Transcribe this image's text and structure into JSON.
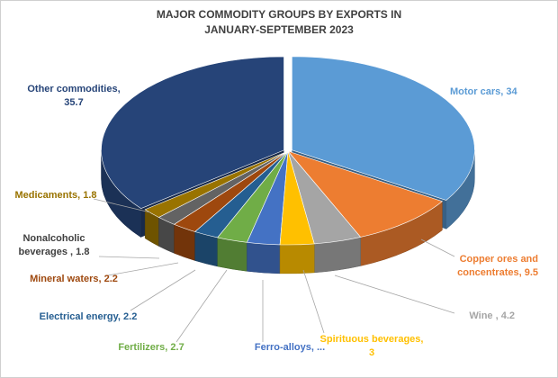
{
  "chart_data": {
    "type": "pie",
    "title_lines": [
      "MAJOR COMMODITY GROUPS BY EXPORTS IN",
      "JANUARY-SEPTEMBER 2023"
    ],
    "style": "3d-exploded-pie",
    "start_angle_deg": 90,
    "direction": "clockwise",
    "slices": [
      {
        "name": "Motor cars",
        "value": 34,
        "color": "#5B9BD5",
        "label_lines": [
          "Motor cars, 34"
        ],
        "label_color": "#5B9BD5"
      },
      {
        "name": "Copper ores and concentrates",
        "value": 9.5,
        "color": "#ED7D31",
        "label_lines": [
          "Copper ores and",
          "concentrates, 9.5"
        ],
        "label_color": "#ED7D31"
      },
      {
        "name": "Wine",
        "value": 4.2,
        "color": "#A5A5A5",
        "label_lines": [
          "Wine , 4.2"
        ],
        "label_color": "#A5A5A5"
      },
      {
        "name": "Spirituous beverages",
        "value": 3,
        "color": "#FFC000",
        "label_lines": [
          "Spirituous beverages,",
          "3"
        ],
        "label_color": "#FFC000"
      },
      {
        "name": "Ferro-alloys",
        "value": 2.9,
        "color": "#4472C4",
        "label_lines": [
          "Ferro-alloys, ..."
        ],
        "label_color": "#4472C4"
      },
      {
        "name": "Fertilizers",
        "value": 2.7,
        "color": "#70AD47",
        "label_lines": [
          "Fertilizers, 2.7"
        ],
        "label_color": "#70AD47"
      },
      {
        "name": "Electrical energy",
        "value": 2.2,
        "color": "#255E91",
        "label_lines": [
          "Electrical energy, 2.2"
        ],
        "label_color": "#255E91"
      },
      {
        "name": "Mineral waters",
        "value": 2.2,
        "color": "#9E480E",
        "label_lines": [
          "Mineral waters, 2.2"
        ],
        "label_color": "#9E480E"
      },
      {
        "name": "Nonalcoholic beverages",
        "value": 1.8,
        "color": "#636363",
        "label_lines": [
          "Nonalcoholic",
          "beverages , 1.8"
        ],
        "label_color": "#404040"
      },
      {
        "name": "Medicaments",
        "value": 1.8,
        "color": "#997300",
        "label_lines": [
          "Medicaments, 1.8"
        ],
        "label_color": "#997300"
      },
      {
        "name": "Other commodities",
        "value": 35.7,
        "color": "#264478",
        "label_lines": [
          "Other commodities,",
          "35.7"
        ],
        "label_color": "#264478"
      }
    ]
  }
}
